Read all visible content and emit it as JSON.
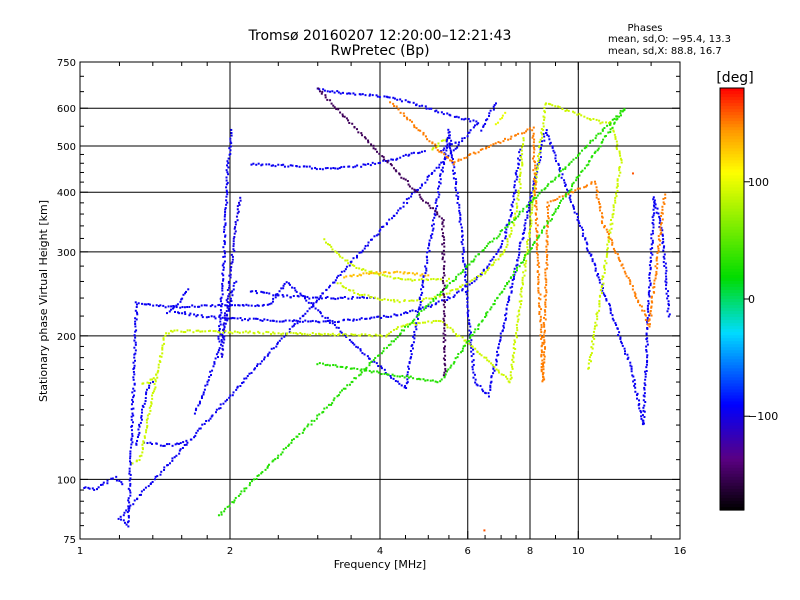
{
  "chart_data": {
    "type": "scatter",
    "title": "Tromsø 20160207 12:20:00–12:21:43",
    "subtitle": "RwPretec (Bp)",
    "stats": {
      "heading": "Phases",
      "line1": "mean, sd,O: −95.4, 13.3",
      "line2": "mean, sd,X:  88.8, 16.7"
    },
    "xlabel": "Frequency [MHz]",
    "ylabel": "Stationary phase Virtual Height [km]",
    "xscale": "log2",
    "yscale": "log",
    "xlim": [
      1,
      16
    ],
    "ylim": [
      75,
      750
    ],
    "x_ticks": [
      {
        "v": 1,
        "label": "1"
      },
      {
        "v": 2,
        "label": "2"
      },
      {
        "v": 4,
        "label": "4"
      },
      {
        "v": 6,
        "label": "6"
      },
      {
        "v": 8,
        "label": "8"
      },
      {
        "v": 10,
        "label": "10"
      },
      {
        "v": 16,
        "label": "16"
      }
    ],
    "x_minor": [
      1.2,
      1.4,
      1.6,
      1.8,
      2.5,
      3,
      3.5,
      4.5,
      5,
      5.5,
      6.5,
      7,
      7.5,
      9,
      12,
      14
    ],
    "y_ticks": [
      {
        "v": 75,
        "label": "75"
      },
      {
        "v": 100,
        "label": "100"
      },
      {
        "v": 200,
        "label": "200"
      },
      {
        "v": 300,
        "label": "300"
      },
      {
        "v": 400,
        "label": "400"
      },
      {
        "v": 500,
        "label": "500"
      },
      {
        "v": 600,
        "label": "600"
      },
      {
        "v": 750,
        "label": "750"
      }
    ],
    "grid": true,
    "colorbar": {
      "label": "[deg]",
      "range": [
        -180,
        180
      ],
      "ticks": [
        {
          "v": 100,
          "label": "100"
        },
        {
          "v": 0,
          "label": "0"
        },
        {
          "v": -100,
          "label": "−100"
        }
      ]
    },
    "series": [
      {
        "phase": -95,
        "points": [
          [
            1.02,
            96
          ],
          [
            1.05,
            96
          ],
          [
            1.08,
            95
          ],
          [
            1.1,
            97
          ],
          [
            1.12,
            98
          ],
          [
            1.15,
            100
          ],
          [
            1.18,
            101
          ],
          [
            1.2,
            99
          ],
          [
            1.22,
            98
          ]
        ]
      },
      {
        "phase": -95,
        "points": [
          [
            1.3,
            118
          ],
          [
            1.32,
            130
          ],
          [
            1.34,
            143
          ],
          [
            1.36,
            152
          ],
          [
            1.38,
            158
          ],
          [
            1.4,
            160
          ]
        ]
      },
      {
        "phase": -95,
        "points": [
          [
            1.35,
            120
          ],
          [
            1.4,
            119
          ],
          [
            1.45,
            118
          ],
          [
            1.5,
            118
          ],
          [
            1.55,
            118
          ],
          [
            1.6,
            119
          ],
          [
            1.63,
            120
          ]
        ]
      },
      {
        "phase": -95,
        "points": [
          [
            1.5,
            222
          ],
          [
            1.55,
            230
          ],
          [
            1.6,
            238
          ],
          [
            1.63,
            245
          ],
          [
            1.65,
            250
          ]
        ]
      },
      {
        "phase": -95,
        "points": [
          [
            1.7,
            138
          ],
          [
            1.75,
            148
          ],
          [
            1.8,
            160
          ],
          [
            1.85,
            172
          ],
          [
            1.9,
            185
          ],
          [
            1.95,
            205
          ],
          [
            2.0,
            235
          ],
          [
            2.05,
            260
          ]
        ]
      },
      {
        "phase": -95,
        "points": [
          [
            1.9,
            195
          ],
          [
            1.92,
            230
          ],
          [
            1.94,
            270
          ],
          [
            1.95,
            310
          ],
          [
            1.96,
            350
          ],
          [
            1.97,
            400
          ],
          [
            1.98,
            450
          ],
          [
            2.0,
            500
          ],
          [
            2.02,
            540
          ]
        ]
      },
      {
        "phase": -100,
        "points": [
          [
            1.93,
            180
          ],
          [
            1.95,
            210
          ],
          [
            1.98,
            240
          ],
          [
            2.0,
            270
          ],
          [
            2.03,
            300
          ],
          [
            2.05,
            330
          ],
          [
            2.07,
            360
          ],
          [
            2.1,
            390
          ]
        ]
      },
      {
        "phase": -95,
        "points": [
          [
            1.55,
            225
          ],
          [
            1.65,
            222
          ],
          [
            1.75,
            220
          ],
          [
            1.9,
            218
          ],
          [
            2.05,
            217
          ],
          [
            2.3,
            216
          ],
          [
            2.6,
            215
          ],
          [
            3.0,
            214
          ],
          [
            3.4,
            215
          ],
          [
            3.9,
            218
          ],
          [
            4.4,
            222
          ],
          [
            5.0,
            230
          ],
          [
            5.6,
            242
          ],
          [
            6.0,
            255
          ],
          [
            6.4,
            270
          ],
          [
            6.8,
            292
          ],
          [
            7.1,
            320
          ],
          [
            7.3,
            355
          ],
          [
            7.45,
            400
          ],
          [
            7.55,
            450
          ],
          [
            7.65,
            490
          ]
        ]
      },
      {
        "phase": -95,
        "points": [
          [
            2.2,
            458
          ],
          [
            2.5,
            455
          ],
          [
            2.8,
            452
          ],
          [
            3.1,
            448
          ],
          [
            3.4,
            450
          ],
          [
            3.7,
            455
          ],
          [
            4.0,
            462
          ],
          [
            4.3,
            470
          ],
          [
            4.6,
            480
          ],
          [
            4.9,
            488
          ]
        ]
      },
      {
        "phase": -95,
        "points": [
          [
            5.3,
            490
          ],
          [
            5.5,
            500
          ],
          [
            5.7,
            510
          ]
        ]
      },
      {
        "phase": -95,
        "points": [
          [
            6.4,
            540
          ],
          [
            6.55,
            565
          ],
          [
            6.7,
            590
          ],
          [
            6.85,
            615
          ]
        ]
      },
      {
        "phase": -95,
        "points": [
          [
            2.2,
            248
          ],
          [
            2.6,
            242
          ],
          [
            3.0,
            240
          ],
          [
            3.5,
            240
          ],
          [
            3.9,
            240
          ]
        ]
      },
      {
        "phase": 90,
        "points": [
          [
            3.1,
            318
          ],
          [
            3.3,
            295
          ],
          [
            3.6,
            278
          ],
          [
            4.0,
            268
          ],
          [
            4.5,
            262
          ],
          [
            5.0,
            262
          ],
          [
            5.5,
            262
          ]
        ]
      },
      {
        "phase": 90,
        "points": [
          [
            3.3,
            258
          ],
          [
            3.6,
            245
          ],
          [
            4.0,
            238
          ],
          [
            4.4,
            236
          ],
          [
            4.9,
            238
          ],
          [
            5.5,
            246
          ],
          [
            6.0,
            258
          ],
          [
            6.6,
            275
          ],
          [
            7.1,
            300
          ],
          [
            7.4,
            340
          ],
          [
            7.55,
            380
          ],
          [
            7.65,
            420
          ],
          [
            7.7,
            470
          ],
          [
            7.75,
            520
          ]
        ]
      },
      {
        "phase": 90,
        "points": [
          [
            1.33,
            158
          ],
          [
            1.38,
            160
          ],
          [
            1.42,
            165
          ]
        ]
      },
      {
        "phase": 90,
        "points": [
          [
            5.1,
            490
          ],
          [
            5.3,
            510
          ],
          [
            5.5,
            520
          ]
        ]
      },
      {
        "phase": 100,
        "points": [
          [
            6.85,
            555
          ],
          [
            7.0,
            575
          ],
          [
            7.1,
            588
          ]
        ]
      },
      {
        "phase": 130,
        "points": [
          [
            3.4,
            265
          ],
          [
            3.8,
            270
          ],
          [
            4.2,
            272
          ],
          [
            4.6,
            270
          ],
          [
            5.0,
            268
          ]
        ]
      },
      {
        "phase": -95,
        "points": [
          [
            3.0,
            660
          ],
          [
            3.2,
            650
          ],
          [
            4.3,
            630
          ],
          [
            5.5,
            580
          ],
          [
            6.3,
            560
          ],
          [
            1.2,
            83
          ],
          [
            1.25,
            80
          ],
          [
            1.3,
            235
          ],
          [
            1.5,
            230
          ],
          [
            2.4,
            232
          ],
          [
            2.6,
            260
          ],
          [
            3.8,
            180
          ],
          [
            4.5,
            155
          ],
          [
            5.5,
            540
          ],
          [
            5.8,
            350
          ],
          [
            6.2,
            160
          ],
          [
            6.6,
            150
          ],
          [
            8.6,
            540
          ],
          [
            12.8,
            170
          ],
          [
            13.5,
            130
          ],
          [
            14.2,
            390
          ],
          [
            14.8,
            320
          ],
          [
            15.2,
            220
          ]
        ]
      },
      {
        "phase": 90,
        "points": [
          [
            1.28,
            108
          ],
          [
            1.32,
            110
          ],
          [
            1.48,
            200
          ],
          [
            1.52,
            205
          ],
          [
            4.1,
            200
          ],
          [
            4.4,
            210
          ],
          [
            5.3,
            215
          ],
          [
            6.7,
            175
          ],
          [
            7.3,
            160
          ],
          [
            8.6,
            615
          ],
          [
            11.1,
            560
          ],
          [
            11.6,
            560
          ],
          [
            12.2,
            465
          ],
          [
            10.5,
            170
          ]
        ]
      },
      {
        "phase": 150,
        "points": [
          [
            4.2,
            620
          ],
          [
            5.6,
            460
          ],
          [
            6.1,
            480
          ],
          [
            8.1,
            545
          ],
          [
            8.5,
            160
          ],
          [
            8.7,
            380
          ],
          [
            10.8,
            420
          ],
          [
            11.2,
            345
          ],
          [
            13.9,
            210
          ],
          [
            14.9,
            395
          ]
        ]
      },
      {
        "phase": 30,
        "points": [
          [
            3.0,
            175
          ],
          [
            5.3,
            160
          ],
          [
            12.4,
            600
          ],
          [
            1.9,
            84
          ]
        ]
      },
      {
        "phase": -150,
        "points": [
          [
            3.0,
            660
          ],
          [
            5.35,
            350
          ],
          [
            5.4,
            165
          ]
        ]
      },
      {
        "phase": 160,
        "points": [
          [
            6.5,
            78
          ],
          [
            12.9,
            440
          ]
        ]
      }
    ]
  }
}
